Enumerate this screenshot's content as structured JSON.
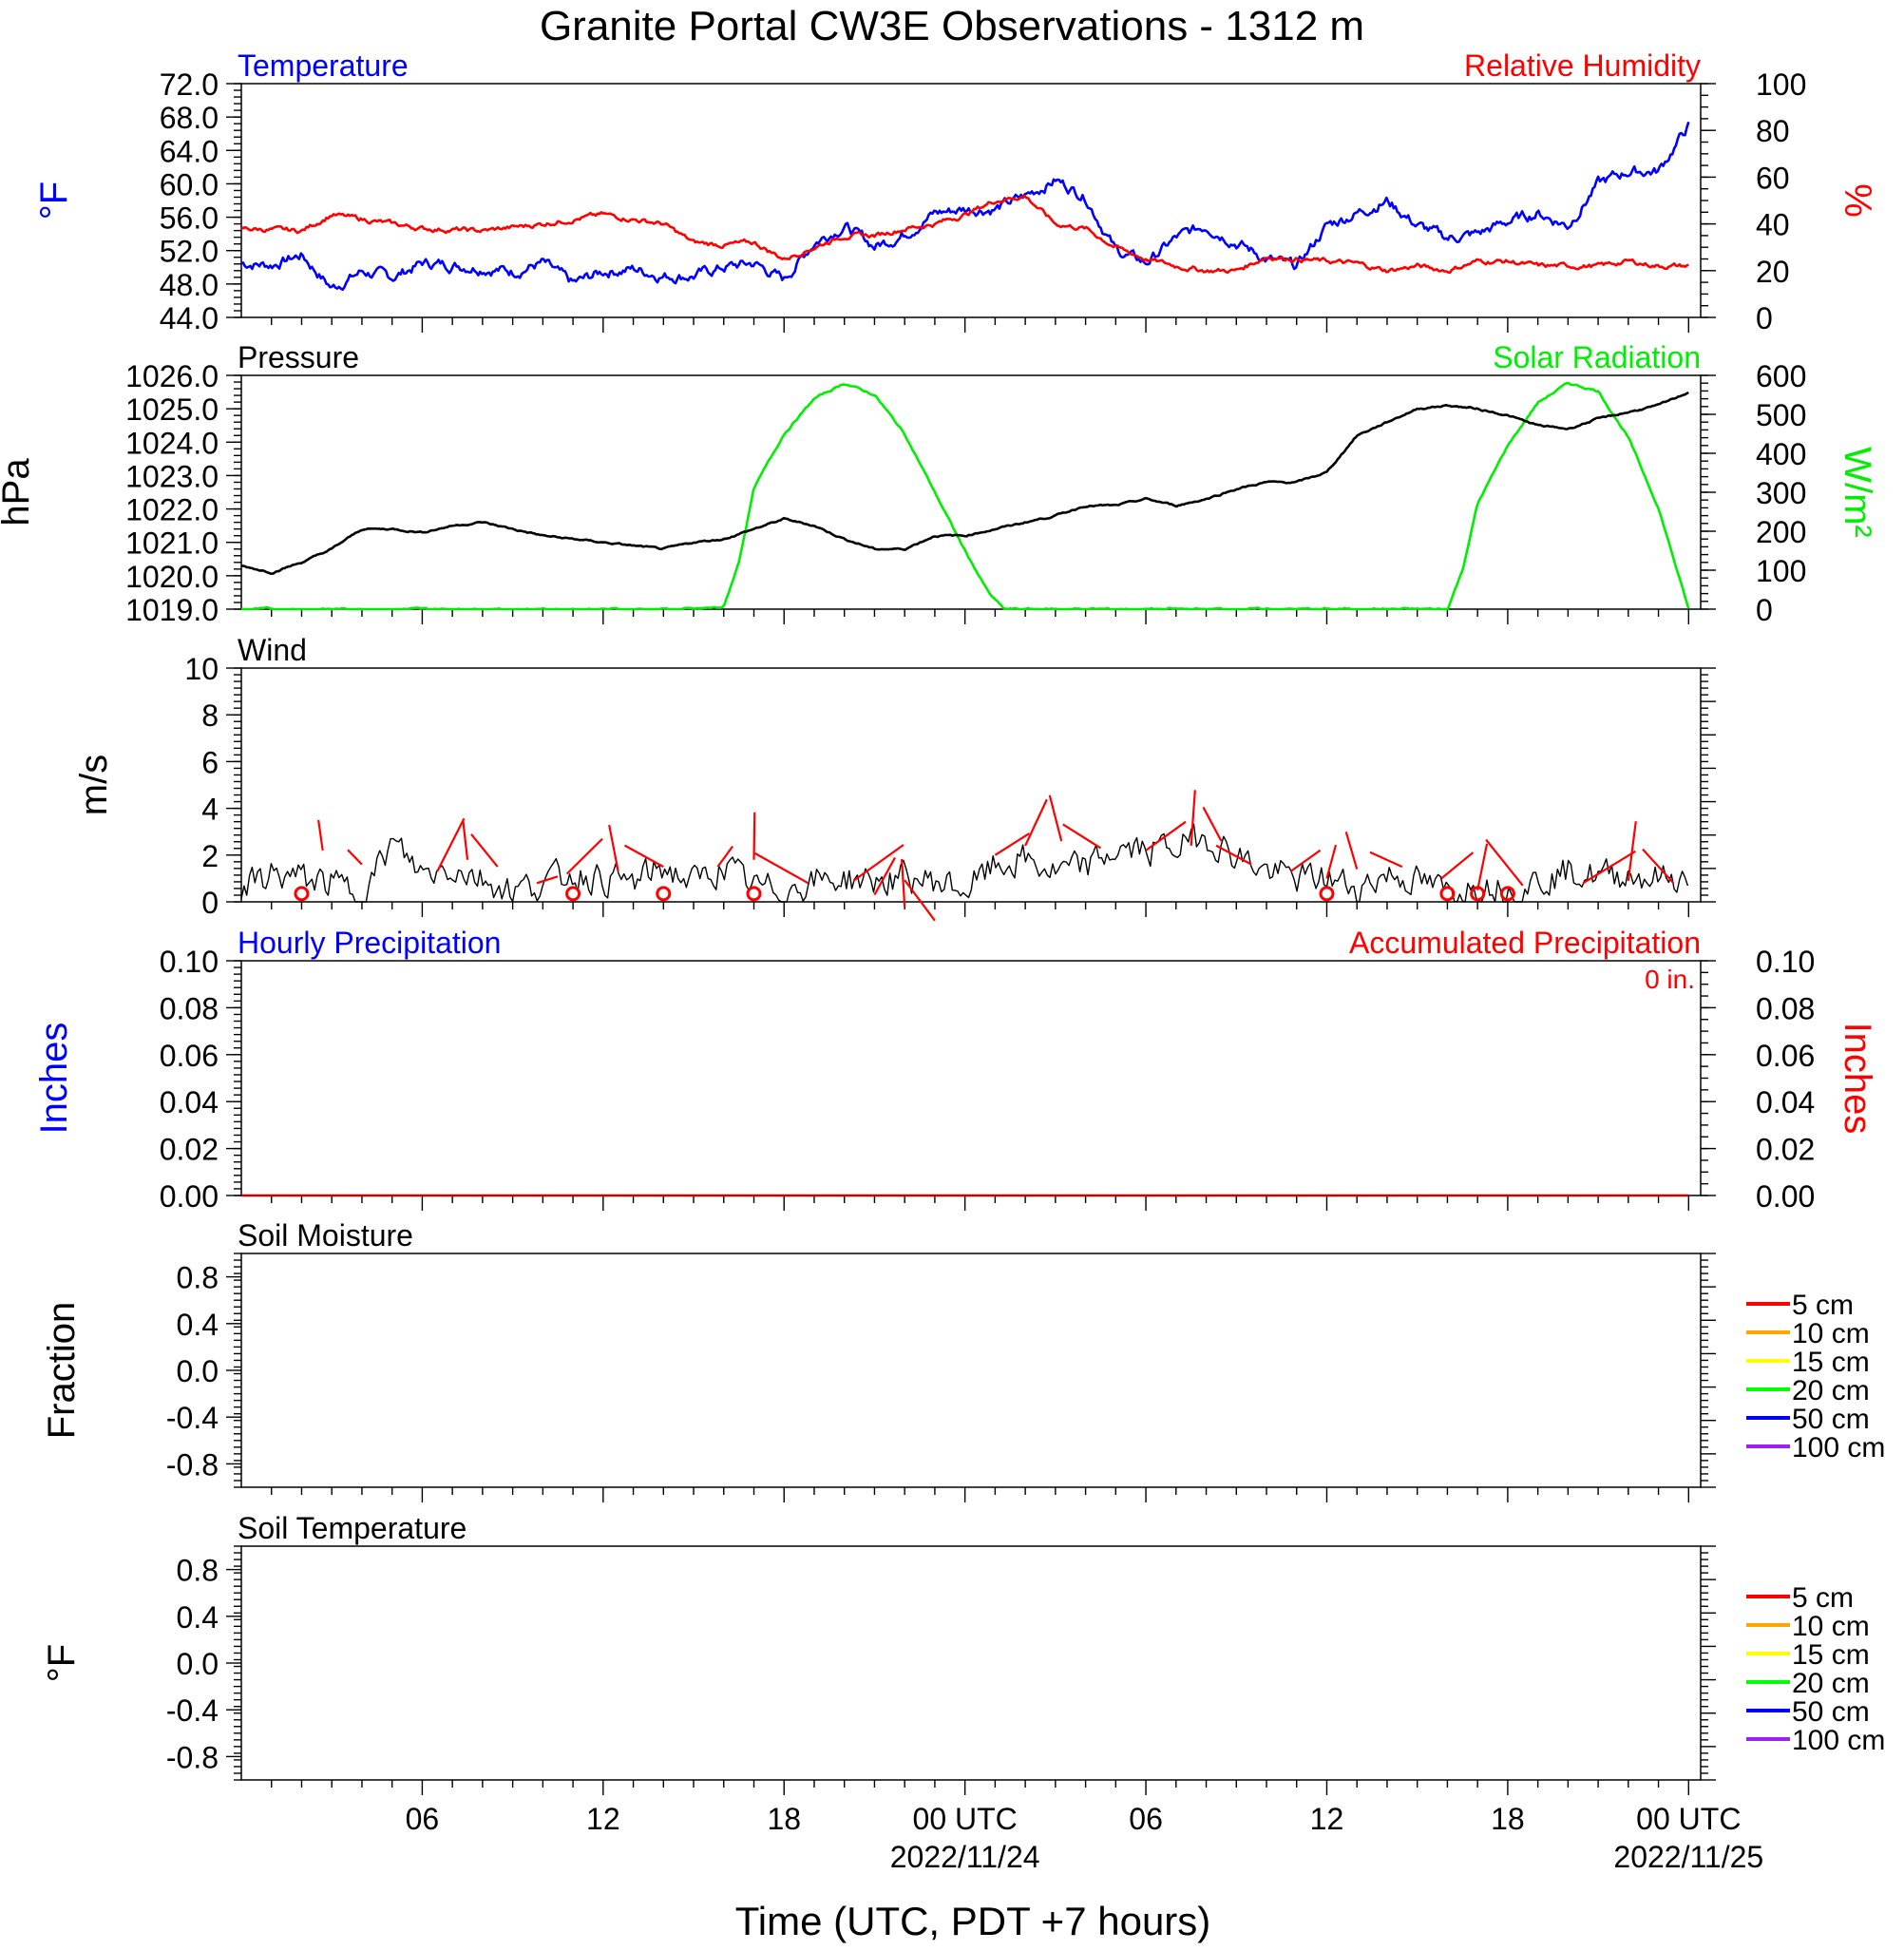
{
  "title": "Granite Portal CW3E Observations - 1312 m",
  "xlabel": "Time (UTC, PDT +7 hours)",
  "x_ticks": [
    {
      "hour": 6,
      "label": "06",
      "date": ""
    },
    {
      "hour": 12,
      "label": "12",
      "date": ""
    },
    {
      "hour": 18,
      "label": "18",
      "date": ""
    },
    {
      "hour": 24,
      "label": "00 UTC",
      "date": "2022/11/24"
    },
    {
      "hour": 30,
      "label": "06",
      "date": ""
    },
    {
      "hour": 36,
      "label": "12",
      "date": ""
    },
    {
      "hour": 42,
      "label": "18",
      "date": ""
    },
    {
      "hour": 48,
      "label": "00 UTC",
      "date": "2022/11/25"
    }
  ],
  "colors": {
    "temperature": "#0000ff",
    "humidity": "#ff0000",
    "pressure": "#000000",
    "solar": "#00ee00",
    "wind": "#000000",
    "wind_dir": "#ff0000",
    "hourly_precip": "#0000ff",
    "accum_precip": "#ff0000"
  },
  "panels": {
    "temp": {
      "label_left": "Temperature",
      "label_right": "Relative Humidity",
      "left_axis": "°F",
      "right_axis": "%",
      "left_ticks": [
        "44.0",
        "48.0",
        "52.0",
        "56.0",
        "60.0",
        "64.0",
        "68.0",
        "72.0"
      ],
      "right_ticks": [
        "0",
        "20",
        "40",
        "60",
        "80",
        "100"
      ]
    },
    "pressure": {
      "label_left": "Pressure",
      "label_right": "Solar Radiation",
      "left_axis": "hPa",
      "right_axis": "W/m²",
      "left_ticks": [
        "1019.0",
        "1020.0",
        "1021.0",
        "1022.0",
        "1023.0",
        "1024.0",
        "1025.0",
        "1026.0"
      ],
      "right_ticks": [
        "0",
        "100",
        "200",
        "300",
        "400",
        "500",
        "600"
      ]
    },
    "wind": {
      "label_left": "Wind",
      "left_axis": "m/s",
      "left_ticks": [
        "0",
        "2",
        "4",
        "6",
        "8",
        "10"
      ]
    },
    "precip": {
      "label_left": "Hourly Precipitation",
      "label_right": "Accumulated Precipitation",
      "total": "0 in.",
      "left_axis": "Inches",
      "right_axis": "Inches",
      "left_ticks": [
        "0.00",
        "0.02",
        "0.04",
        "0.06",
        "0.08",
        "0.10"
      ],
      "right_ticks": [
        "0.00",
        "0.02",
        "0.04",
        "0.06",
        "0.08",
        "0.10"
      ]
    },
    "soil_moist": {
      "label_left": "Soil Moisture",
      "left_axis": "Fraction",
      "left_ticks": [
        "-0.8",
        "-0.4",
        "0.0",
        "0.4",
        "0.8"
      ],
      "legend": [
        {
          "label": "5 cm",
          "color": "#ff0000"
        },
        {
          "label": "10 cm",
          "color": "#ffa500"
        },
        {
          "label": "15 cm",
          "color": "#ffff00"
        },
        {
          "label": "20 cm",
          "color": "#00ff00"
        },
        {
          "label": "50 cm",
          "color": "#0000ff"
        },
        {
          "label": "100 cm",
          "color": "#a020f0"
        }
      ]
    },
    "soil_temp": {
      "label_left": "Soil Temperature",
      "left_axis": "°F",
      "left_ticks": [
        "-0.8",
        "-0.4",
        "0.0",
        "0.4",
        "0.8"
      ],
      "legend": [
        {
          "label": "5 cm",
          "color": "#ff0000"
        },
        {
          "label": "10 cm",
          "color": "#ffa500"
        },
        {
          "label": "15 cm",
          "color": "#ffff00"
        },
        {
          "label": "20 cm",
          "color": "#00ff00"
        },
        {
          "label": "50 cm",
          "color": "#0000ff"
        },
        {
          "label": "100 cm",
          "color": "#a020f0"
        }
      ]
    }
  },
  "chart_data": [
    {
      "type": "line",
      "title": "Temperature",
      "ylabel": "°F",
      "ylim": [
        44,
        72
      ],
      "x_unit": "hours since 2022/11/23 01 UTC",
      "series": [
        {
          "name": "Temperature",
          "x": [
            0,
            1,
            2,
            3,
            4,
            5,
            6,
            7,
            8,
            9,
            10,
            11,
            12,
            13,
            14,
            15,
            16,
            17,
            18,
            19,
            20,
            21,
            22,
            23,
            24,
            25,
            26,
            27,
            28,
            29,
            30,
            31,
            32,
            33,
            34,
            35,
            36,
            37,
            38,
            39,
            40,
            41,
            42,
            43,
            44,
            45,
            46,
            47,
            48
          ],
          "y": [
            50.5,
            50.3,
            51.5,
            47.5,
            49.5,
            48.8,
            50.5,
            50.3,
            50,
            49.5,
            50.5,
            48,
            49.5,
            49.8,
            49,
            49,
            50,
            50.5,
            48.5,
            53,
            55,
            52.5,
            54,
            56.5,
            57,
            57,
            58.5,
            60.5,
            58.5,
            52,
            50.5,
            53.5,
            55,
            53,
            51,
            50,
            55,
            56.5,
            58,
            55,
            53.5,
            54,
            55.5,
            56.5,
            55,
            60,
            61.5,
            61.5,
            67
          ]
        }
      ]
    },
    {
      "type": "line",
      "title": "Relative Humidity",
      "ylabel": "%",
      "ylim": [
        0,
        100
      ],
      "series": [
        {
          "name": "Relative Humidity",
          "x": [
            0,
            2,
            3,
            4,
            6,
            8,
            10,
            12,
            14,
            15,
            16,
            17,
            18,
            19,
            20,
            21,
            22,
            23,
            24,
            25,
            26,
            27,
            28,
            29,
            30,
            31,
            32,
            33,
            34,
            35,
            36,
            37,
            38,
            39,
            40,
            41,
            42,
            43,
            44,
            45,
            46,
            47,
            48
          ],
          "y": [
            38,
            37,
            44,
            42,
            38,
            37,
            40,
            44,
            40,
            32,
            31,
            32,
            25,
            30,
            35,
            35,
            38,
            40,
            44,
            50,
            52,
            40,
            38,
            30,
            25,
            22,
            20,
            20,
            26,
            25,
            24,
            23,
            20,
            22,
            20,
            24,
            24,
            22,
            22,
            22,
            24,
            22,
            22
          ]
        }
      ]
    },
    {
      "type": "line",
      "title": "Pressure",
      "ylabel": "hPa",
      "ylim": [
        1019,
        1026
      ],
      "series": [
        {
          "name": "Pressure",
          "x": [
            0,
            1,
            2,
            3,
            4,
            5,
            6,
            7,
            8,
            9,
            10,
            11,
            12,
            13,
            14,
            15,
            16,
            17,
            18,
            19,
            20,
            21,
            22,
            23,
            24,
            25,
            26,
            27,
            28,
            29,
            30,
            31,
            32,
            33,
            34,
            35,
            36,
            37,
            38,
            39,
            40,
            41,
            42,
            43,
            44,
            45,
            46,
            47,
            48
          ],
          "y": [
            1020.3,
            1020.1,
            1020.4,
            1020.8,
            1021.4,
            1021.4,
            1021.3,
            1021.5,
            1021.6,
            1021.4,
            1021.2,
            1021.1,
            1021,
            1020.9,
            1020.8,
            1021,
            1021.1,
            1021.4,
            1021.7,
            1021.5,
            1021.1,
            1020.8,
            1020.8,
            1021.2,
            1021.2,
            1021.4,
            1021.6,
            1021.8,
            1022.1,
            1022.1,
            1022.3,
            1022.1,
            1022.3,
            1022.6,
            1022.8,
            1022.8,
            1023.1,
            1024.2,
            1024.6,
            1025,
            1025.1,
            1025,
            1024.8,
            1024.5,
            1024.4,
            1024.7,
            1024.9,
            1025.1,
            1025.5
          ]
        }
      ]
    },
    {
      "type": "area",
      "title": "Solar Radiation",
      "ylabel": "W/m²",
      "ylim": [
        0,
        600
      ],
      "series": [
        {
          "name": "Solar Radiation",
          "x": [
            0,
            15,
            16,
            16.5,
            17,
            18,
            19,
            20,
            21,
            22,
            23,
            24,
            24.8,
            25.3,
            40,
            40.5,
            41,
            42,
            43,
            44,
            45,
            46,
            47,
            48
          ],
          "y": [
            0,
            0,
            5,
            120,
            310,
            450,
            540,
            580,
            550,
            450,
            300,
            150,
            40,
            0,
            0,
            100,
            270,
            420,
            530,
            580,
            560,
            440,
            260,
            0
          ]
        }
      ]
    },
    {
      "type": "line",
      "title": "Wind",
      "ylabel": "m/s",
      "ylim": [
        0,
        10
      ],
      "series": [
        {
          "name": "Wind speed",
          "x": [
            0,
            1,
            2,
            3,
            4,
            5,
            6,
            7,
            8,
            9,
            10,
            11,
            12,
            13,
            14,
            15,
            16,
            17,
            18,
            19,
            20,
            21,
            22,
            23,
            24,
            25,
            26,
            27,
            28,
            29,
            30,
            31,
            32,
            33,
            34,
            35,
            36,
            37,
            38,
            39,
            40,
            41,
            42,
            43,
            44,
            45,
            46,
            47,
            48
          ],
          "y": [
            0.5,
            1.2,
            1,
            0.8,
            0.3,
            2.5,
            1.2,
            1.5,
            1,
            0.5,
            0.8,
            1.2,
            1,
            0.8,
            1.5,
            0.8,
            1.5,
            0.6,
            0.5,
            0.9,
            1,
            0.9,
            1,
            0.9,
            0.5,
            1.5,
            1.8,
            1.2,
            1.5,
            2.2,
            2.2,
            2.4,
            2.8,
            2,
            1.3,
            1,
            1,
            0.6,
            1.2,
            0.9,
            0.4,
            0.8,
            0.6,
            0.9,
            1.3,
            1.1,
            1.2,
            1,
            1
          ]
        }
      ]
    },
    {
      "type": "line",
      "title": "Hourly Precipitation",
      "ylabel": "Inches",
      "ylim": [
        0,
        0.1
      ],
      "series": [
        {
          "name": "Hourly Precipitation",
          "x": [
            0,
            48
          ],
          "y": [
            0,
            0
          ]
        },
        {
          "name": "Accumulated Precipitation",
          "x": [
            0,
            48
          ],
          "y": [
            0,
            0
          ]
        }
      ]
    }
  ]
}
